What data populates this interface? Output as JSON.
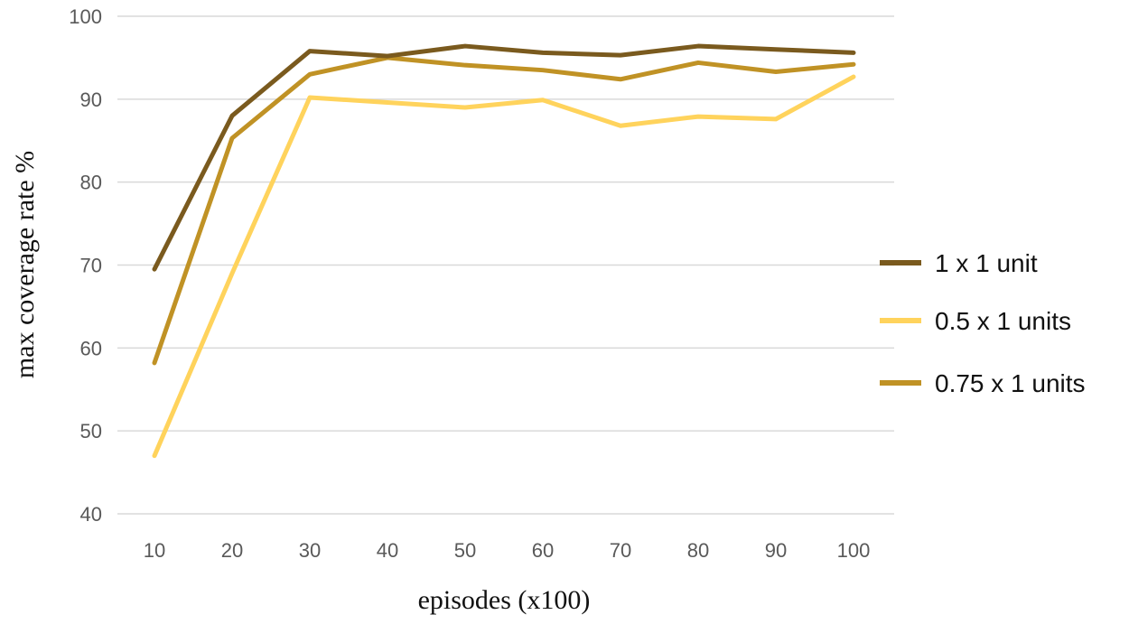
{
  "chart_data": {
    "type": "line",
    "title": "",
    "xlabel": "episodes  (x100)",
    "ylabel": "max  coverage  rate  %",
    "x": [
      10,
      20,
      30,
      40,
      50,
      60,
      70,
      80,
      90,
      100
    ],
    "x_tick_labels": [
      "10",
      "20",
      "30",
      "40",
      "50",
      "60",
      "70",
      "80",
      "90",
      "100"
    ],
    "ylim": [
      40,
      100
    ],
    "y_ticks": [
      40,
      50,
      60,
      70,
      80,
      90,
      100
    ],
    "y_tick_labels": [
      "40",
      "50",
      "60",
      "70",
      "80",
      "90",
      "100"
    ],
    "grid": "horizontal",
    "legend_position": "right",
    "series": [
      {
        "name": "1 x 1 unit",
        "color": "#7a5a1e",
        "values": [
          69.5,
          88.0,
          95.8,
          95.2,
          96.4,
          95.6,
          95.3,
          96.4,
          96.0,
          95.6
        ]
      },
      {
        "name": "0.5 x 1 units",
        "color": "#ffd35c",
        "values": [
          47.0,
          69.0,
          90.2,
          89.6,
          89.0,
          89.9,
          86.8,
          87.9,
          87.6,
          92.7
        ]
      },
      {
        "name": "0.75 x 1 units",
        "color": "#c09225",
        "values": [
          58.2,
          85.3,
          93.0,
          95.0,
          94.1,
          93.5,
          92.4,
          94.4,
          93.3,
          94.2
        ]
      }
    ]
  }
}
